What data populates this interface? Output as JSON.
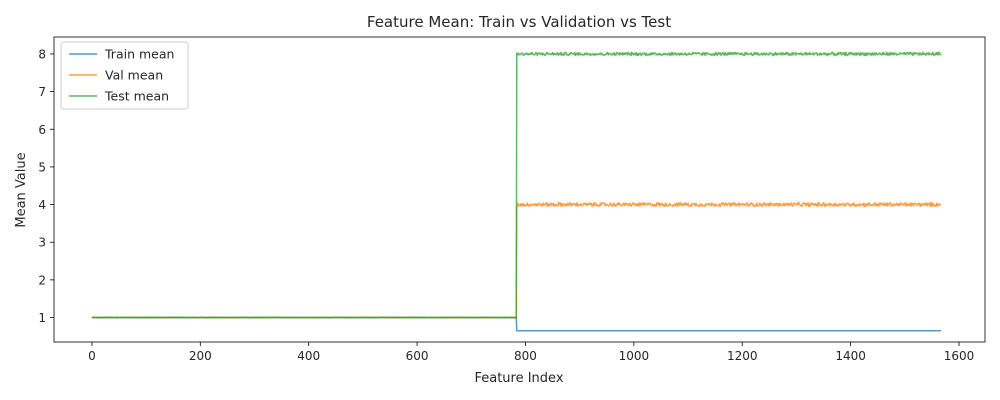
{
  "chart_data": {
    "type": "line",
    "title": "Feature Mean: Train vs Validation vs Test",
    "xlabel": "Feature Index",
    "ylabel": "Mean Value",
    "xlim": [
      -70,
      1648
    ],
    "ylim": [
      0.35,
      8.45
    ],
    "xticks": [
      0,
      200,
      400,
      600,
      800,
      1000,
      1200,
      1400,
      1600
    ],
    "yticks": [
      1,
      2,
      3,
      4,
      5,
      6,
      7,
      8
    ],
    "grid": false,
    "legend_position": "top-left",
    "split_index": 784,
    "x_max": 1567,
    "series": [
      {
        "name": "Train mean",
        "color": "#1f77b4",
        "segments": [
          {
            "from": 0,
            "to": 783,
            "level": 1.0,
            "noise": 0.004
          },
          {
            "from": 784,
            "to": 1567,
            "level": 0.65,
            "noise": 0.0
          }
        ]
      },
      {
        "name": "Val mean",
        "color": "#ff7f0e",
        "segments": [
          {
            "from": 0,
            "to": 783,
            "level": 1.0,
            "noise": 0.004
          },
          {
            "from": 784,
            "to": 1567,
            "level": 4.0,
            "noise": 0.03
          }
        ]
      },
      {
        "name": "Test mean",
        "color": "#2ca02c",
        "segments": [
          {
            "from": 0,
            "to": 783,
            "level": 1.0,
            "noise": 0.004
          },
          {
            "from": 784,
            "to": 1567,
            "level": 8.0,
            "noise": 0.025
          }
        ]
      }
    ]
  }
}
